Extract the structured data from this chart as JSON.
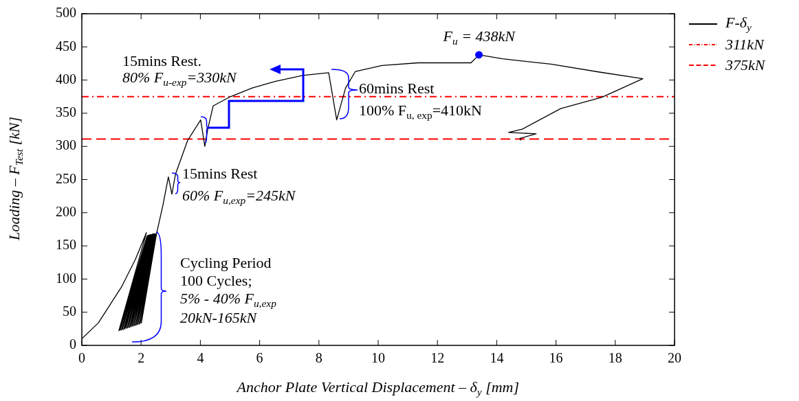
{
  "chart_data": {
    "type": "line",
    "xlabel": "Anchor Plate Vertical Displacement – δ$_{y}$ [mm]",
    "ylabel": "Loading – F$_{Test}$ [kN]",
    "xlim": [
      0,
      20
    ],
    "xticks": [
      0,
      2,
      4,
      6,
      8,
      10,
      12,
      14,
      16,
      18,
      20
    ],
    "ylim": [
      0,
      500
    ],
    "yticks": [
      0,
      50,
      100,
      150,
      200,
      250,
      300,
      350,
      400,
      450,
      500
    ],
    "grid": false,
    "legend": "right",
    "marker": "none",
    "series": [
      {
        "name": "F-δ$_{y}$",
        "color": "#000000",
        "line_style": "solid",
        "x": [
          0,
          0.56,
          1.35,
          1.81,
          2.18,
          1.25,
          2.2,
          1.29,
          2.22,
          1.33,
          2.23,
          1.37,
          2.25,
          1.41,
          2.27,
          1.45,
          2.29,
          1.49,
          2.3,
          1.53,
          2.32,
          1.57,
          2.34,
          1.61,
          2.35,
          1.65,
          2.37,
          1.69,
          2.39,
          1.73,
          2.4,
          1.77,
          2.42,
          1.81,
          2.44,
          1.85,
          2.45,
          1.89,
          2.47,
          1.93,
          2.49,
          1.97,
          2.5,
          2.01,
          2.52,
          2.74,
          2.92,
          3.04,
          3.16,
          3.57,
          4.01,
          4.15,
          4.25,
          4.43,
          4.97,
          5.75,
          6.52,
          7.45,
          8.33,
          8.6,
          8.9,
          9.23,
          10.13,
          11.35,
          13.13,
          13.4,
          14.2,
          15.83,
          17.47,
          18.93,
          17.55,
          16.16,
          14.86,
          14.4,
          15.33,
          14.78,
          14.82
        ],
        "values": [
          10,
          34,
          89,
          130,
          170,
          22,
          165,
          23,
          165,
          23,
          166,
          24,
          166,
          24,
          166,
          25,
          166,
          26,
          167,
          26,
          167,
          27,
          167,
          27,
          167,
          28,
          167,
          29,
          168,
          29,
          168,
          30,
          168,
          30,
          168,
          31,
          168,
          32,
          168,
          32,
          168,
          33,
          168,
          34,
          168,
          212,
          254,
          228,
          258,
          309,
          340,
          300,
          326,
          361,
          374,
          388,
          398,
          407,
          411,
          340,
          388,
          413,
          422,
          426,
          426,
          438,
          432,
          424,
          412,
          402,
          374,
          357,
          326,
          321,
          319,
          312,
          309
        ]
      },
      {
        "type": "scatter",
        "color": "#0000ff",
        "marker": "circle",
        "x": [
          13.4
        ],
        "values": [
          438
        ]
      }
    ],
    "ref_lines": [
      {
        "axis": "y",
        "value": 375,
        "label": "311kN",
        "color": "#ff0000",
        "line_style": "dashdot"
      },
      {
        "axis": "y",
        "value": 311,
        "label": "375kN",
        "color": "#ff0000",
        "line_style": "dashed"
      }
    ],
    "annotations": [
      {
        "text": "F$_{u}$ = 438kN",
        "x": 13.4,
        "y": 438
      },
      "15mins Rest.",
      "80% F$_{u-exp}$=330kN",
      "60mins Rest",
      "100% F$_{u, exp}$=410kN",
      "15mins Rest",
      "60% F$_{u,exp}$=245kN",
      "Cycling Period",
      "100 Cycles;",
      "5% - 40% F$_{u,exp}$",
      "20kN-165kN"
    ]
  }
}
